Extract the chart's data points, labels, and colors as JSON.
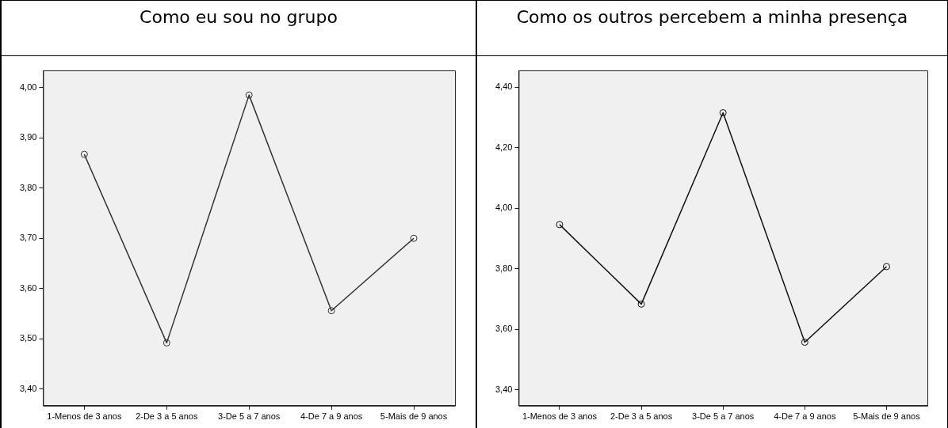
{
  "chart_data": [
    {
      "type": "line",
      "title": "Como eu sou no grupo",
      "categories": [
        "1-Menos de 3 anos",
        "2-De 3 a 5 anos",
        "3-De 5 a 7 anos",
        "4-De 7 a 9 anos",
        "5-Mais de 9 anos"
      ],
      "series": [
        {
          "color": "#333333",
          "values": [
            3.867,
            3.492,
            3.985,
            3.556,
            3.7
          ]
        }
      ],
      "ylim": [
        3.367,
        4.034
      ],
      "yticks": [
        {
          "value": 3.4,
          "label": "3,40"
        },
        {
          "value": 3.5,
          "label": "3,50"
        },
        {
          "value": 3.6,
          "label": "3,60"
        },
        {
          "value": 3.7,
          "label": "3,70"
        },
        {
          "value": 3.8,
          "label": "3,80"
        },
        {
          "value": 3.9,
          "label": "3,90"
        },
        {
          "value": 4.0,
          "label": "4,00"
        }
      ],
      "grid": false,
      "legend": false,
      "marker": "circle",
      "line_style": "solid"
    },
    {
      "type": "line",
      "title": "Como os outros percebem a minha presença",
      "categories": [
        "1-Menos de 3 anos",
        "2-De 3 a 5 anos",
        "3-De 5 a 7 anos",
        "4-De 7 a 9 anos",
        "5-Mais de 9 anos"
      ],
      "series": [
        {
          "color": "#111111",
          "values": [
            3.946,
            3.683,
            4.316,
            3.557,
            3.807
          ]
        }
      ],
      "ylim": [
        3.347,
        4.456
      ],
      "yticks": [
        {
          "value": 3.4,
          "label": "3,40"
        },
        {
          "value": 3.6,
          "label": "3,60"
        },
        {
          "value": 3.8,
          "label": "3,80"
        },
        {
          "value": 4.0,
          "label": "4,00"
        },
        {
          "value": 4.2,
          "label": "4,20"
        },
        {
          "value": 4.4,
          "label": "4,40"
        }
      ],
      "grid": false,
      "legend": false,
      "marker": "circle",
      "line_style": "solid"
    }
  ]
}
